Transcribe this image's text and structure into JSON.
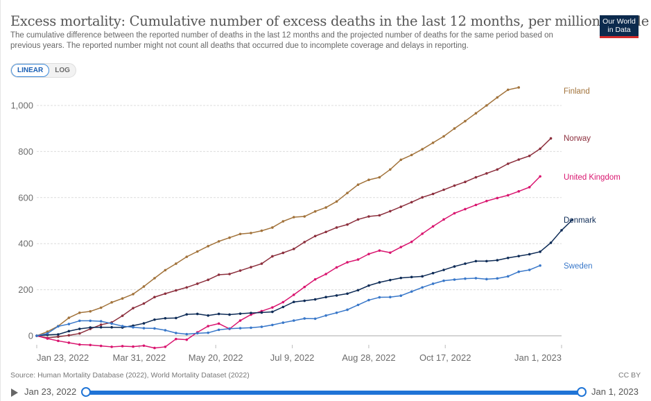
{
  "header": {
    "title": "Excess mortality: Cumulative number of excess deaths in the last 12 months, per million people",
    "subtitle": "The cumulative difference between the reported number of deaths in the last 12 months and the projected number of deaths for the same period based on previous years. The reported number might not count all deaths that occurred due to incomplete coverage and delays in reporting.",
    "logo_line1": "Our World",
    "logo_line2": "in Data"
  },
  "scale_toggle": {
    "linear": "LINEAR",
    "log": "LOG",
    "selected": "LINEAR"
  },
  "footer": {
    "source": "Source: Human Mortality Database (2022), World Mortality Dataset (2022)",
    "license": "CC BY"
  },
  "timeline": {
    "start": "Jan 23, 2022",
    "end": "Jan 1, 2023"
  },
  "colors": {
    "Finland": "#a2733b",
    "Norway": "#8c2f3d",
    "United Kingdom": "#d9156f",
    "Denmark": "#0d2b56",
    "Sweden": "#3877c9",
    "accent": "#1f74d6"
  },
  "chart_data": {
    "type": "line",
    "title": "Excess mortality: Cumulative number of excess deaths in the last 12 months, per million people",
    "xlabel": "",
    "ylabel": "",
    "x_start": "2022-01-23",
    "x_step_days": 7,
    "x_ticks": [
      "Jan 23, 2022",
      "Mar 31, 2022",
      "May 20, 2022",
      "Jul 9, 2022",
      "Aug 28, 2022",
      "Oct 17, 2022",
      "Jan 1, 2023"
    ],
    "x_tick_weeks": [
      0,
      9.57,
      16.71,
      23.86,
      31,
      38.14,
      49
    ],
    "y_ticks": [
      0,
      200,
      400,
      600,
      800,
      1000
    ],
    "y_tick_labels": [
      "0",
      "200",
      "400",
      "600",
      "800",
      "1,000"
    ],
    "ylim": [
      -60,
      1100
    ],
    "grid": true,
    "legend": "right, labels at line ends",
    "series": [
      {
        "name": "Finland",
        "values": [
          0,
          18,
          42,
          78,
          100,
          106,
          122,
          145,
          162,
          181,
          214,
          250,
          285,
          313,
          343,
          366,
          389,
          410,
          426,
          442,
          446,
          456,
          470,
          497,
          515,
          518,
          540,
          557,
          583,
          620,
          656,
          677,
          688,
          722,
          764,
          785,
          810,
          838,
          866,
          900,
          932,
          966,
          1000,
          1035,
          1068,
          1078
        ]
      },
      {
        "name": "Norway",
        "values": [
          0,
          -9,
          -4,
          2,
          10,
          30,
          48,
          58,
          87,
          120,
          140,
          168,
          183,
          197,
          210,
          226,
          243,
          265,
          268,
          283,
          298,
          313,
          345,
          360,
          377,
          407,
          433,
          451,
          470,
          483,
          505,
          518,
          523,
          541,
          560,
          580,
          601,
          616,
          634,
          652,
          668,
          688,
          705,
          722,
          747,
          765,
          781,
          812,
          857
        ]
      },
      {
        "name": "United Kingdom",
        "values": [
          0,
          -12,
          -22,
          -30,
          -38,
          -40,
          -44,
          -48,
          -45,
          -47,
          -43,
          -53,
          -48,
          -14,
          -17,
          15,
          42,
          53,
          30,
          66,
          92,
          107,
          123,
          146,
          178,
          212,
          245,
          268,
          297,
          319,
          331,
          355,
          370,
          361,
          385,
          408,
          443,
          475,
          505,
          532,
          550,
          568,
          585,
          598,
          610,
          627,
          645,
          692
        ]
      },
      {
        "name": "Denmark",
        "values": [
          0,
          4,
          6,
          20,
          30,
          36,
          37,
          37,
          36,
          44,
          54,
          70,
          76,
          77,
          93,
          95,
          88,
          95,
          92,
          96,
          99,
          101,
          104,
          125,
          147,
          152,
          158,
          168,
          175,
          183,
          198,
          218,
          232,
          242,
          251,
          255,
          258,
          272,
          286,
          301,
          313,
          324,
          324,
          328,
          338,
          346,
          354,
          365,
          404,
          458,
          503
        ]
      },
      {
        "name": "Sweden",
        "values": [
          0,
          10,
          41,
          51,
          65,
          65,
          63,
          53,
          42,
          37,
          33,
          32,
          24,
          12,
          7,
          11,
          13,
          26,
          31,
          33,
          35,
          39,
          47,
          57,
          66,
          75,
          74,
          88,
          100,
          113,
          134,
          155,
          167,
          168,
          174,
          192,
          210,
          226,
          239,
          244,
          248,
          250,
          246,
          249,
          258,
          278,
          286,
          305
        ]
      }
    ]
  }
}
